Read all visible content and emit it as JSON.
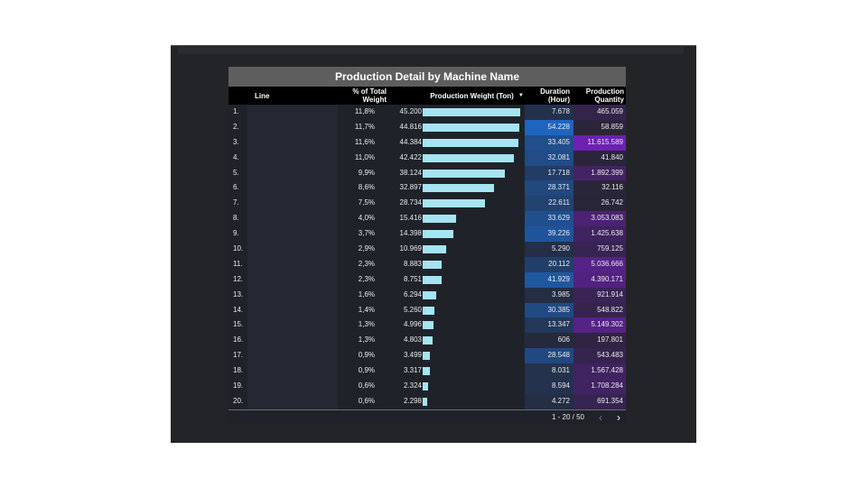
{
  "title": "Production Detail by Machine Name",
  "columns": {
    "line": "Line",
    "pct": "% of Total Weight",
    "weight": "Production Weight (Ton)",
    "duration": "Duration (Hour)",
    "quantity": "Production Quantity"
  },
  "sort_indicator": "▼",
  "rows": [
    {
      "rank": "1.",
      "pct": "11,8%",
      "weight": "45.200",
      "weight_value": 45.2,
      "duration": "7.678",
      "quantity": "465.059"
    },
    {
      "rank": "2.",
      "pct": "11,7%",
      "weight": "44.816",
      "weight_value": 44.816,
      "duration": "54.228",
      "quantity": "58.859"
    },
    {
      "rank": "3.",
      "pct": "11,6%",
      "weight": "44.384",
      "weight_value": 44.384,
      "duration": "33.405",
      "quantity": "11.615.589"
    },
    {
      "rank": "4.",
      "pct": "11,0%",
      "weight": "42.422",
      "weight_value": 42.422,
      "duration": "32.081",
      "quantity": "41.840"
    },
    {
      "rank": "5.",
      "pct": "9,9%",
      "weight": "38.124",
      "weight_value": 38.124,
      "duration": "17.718",
      "quantity": "1.892.399"
    },
    {
      "rank": "6.",
      "pct": "8,6%",
      "weight": "32.897",
      "weight_value": 32.897,
      "duration": "28.371",
      "quantity": "32.116"
    },
    {
      "rank": "7.",
      "pct": "7,5%",
      "weight": "28.734",
      "weight_value": 28.734,
      "duration": "22.611",
      "quantity": "26.742"
    },
    {
      "rank": "8.",
      "pct": "4,0%",
      "weight": "15.416",
      "weight_value": 15.416,
      "duration": "33.629",
      "quantity": "3.053.083"
    },
    {
      "rank": "9.",
      "pct": "3,7%",
      "weight": "14.398",
      "weight_value": 14.398,
      "duration": "39.226",
      "quantity": "1.425.638"
    },
    {
      "rank": "10.",
      "pct": "2,9%",
      "weight": "10.969",
      "weight_value": 10.969,
      "duration": "5.290",
      "quantity": "759.125"
    },
    {
      "rank": "11.",
      "pct": "2,3%",
      "weight": "8.883",
      "weight_value": 8.883,
      "duration": "20.112",
      "quantity": "5.036.666"
    },
    {
      "rank": "12.",
      "pct": "2,3%",
      "weight": "8.751",
      "weight_value": 8.751,
      "duration": "41.929",
      "quantity": "4.390.171"
    },
    {
      "rank": "13.",
      "pct": "1,6%",
      "weight": "6.294",
      "weight_value": 6.294,
      "duration": "3.985",
      "quantity": "921.914"
    },
    {
      "rank": "14.",
      "pct": "1,4%",
      "weight": "5.260",
      "weight_value": 5.26,
      "duration": "30.385",
      "quantity": "548.822"
    },
    {
      "rank": "15.",
      "pct": "1,3%",
      "weight": "4.996",
      "weight_value": 4.996,
      "duration": "13.347",
      "quantity": "5.149.302"
    },
    {
      "rank": "16.",
      "pct": "1,3%",
      "weight": "4.803",
      "weight_value": 4.803,
      "duration": "606",
      "quantity": "197.801"
    },
    {
      "rank": "17.",
      "pct": "0,9%",
      "weight": "3.499",
      "weight_value": 3.499,
      "duration": "28.548",
      "quantity": "543.483"
    },
    {
      "rank": "18.",
      "pct": "0,9%",
      "weight": "3.317",
      "weight_value": 3.317,
      "duration": "8.031",
      "quantity": "1.567.428"
    },
    {
      "rank": "19.",
      "pct": "0,6%",
      "weight": "2.324",
      "weight_value": 2.324,
      "duration": "8.594",
      "quantity": "1.708.284"
    },
    {
      "rank": "20.",
      "pct": "0,6%",
      "weight": "2.298",
      "weight_value": 2.298,
      "duration": "4.272",
      "quantity": "691.354"
    }
  ],
  "weight_max": 45.2,
  "duration_max": 54.228,
  "quantity_max": 11615.589,
  "colors": {
    "bar": "#a6e4f2",
    "duration_heat": "#1d6fd6",
    "quantity_heat": "#7a1fc9",
    "cell_base": "#25293a"
  },
  "pager": {
    "text": "1 - 20 / 50",
    "prev_icon": "chevron-left-icon",
    "next_icon": "chevron-right-icon"
  }
}
